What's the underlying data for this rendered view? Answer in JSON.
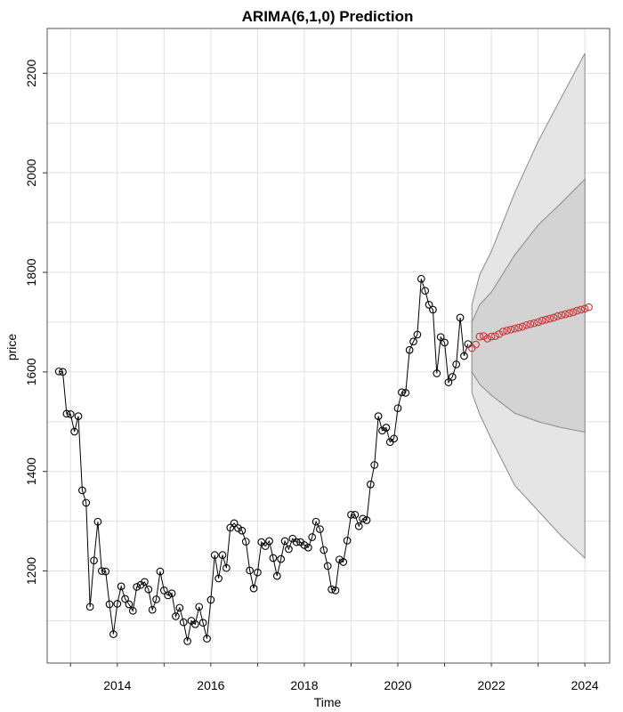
{
  "chart_data": {
    "type": "line",
    "title": "ARIMA(6,1,0) Prediction",
    "xlabel": "Time",
    "ylabel": "price",
    "xlim": [
      2012.75,
      2024.4
    ],
    "ylim": [
      1015,
      2290
    ],
    "grid": true,
    "x_ticks": [
      2014,
      2016,
      2018,
      2020,
      2022,
      2024
    ],
    "y_ticks": [
      1200,
      1400,
      1600,
      1800,
      2000,
      2200
    ],
    "series": [
      {
        "role": "observed",
        "color": "#000000",
        "start": 2012.75,
        "step": 0.0833333,
        "values": [
          1601,
          1600,
          1516,
          1515,
          1480,
          1511,
          1362,
          1337,
          1128,
          1221,
          1299,
          1200,
          1199,
          1133,
          1073,
          1134,
          1169,
          1144,
          1133,
          1120,
          1168,
          1172,
          1178,
          1163,
          1122,
          1143,
          1199,
          1161,
          1151,
          1155,
          1109,
          1126,
          1097,
          1059,
          1100,
          1093,
          1128,
          1096,
          1064,
          1142,
          1232,
          1185,
          1232,
          1206,
          1287,
          1296,
          1286,
          1281,
          1259,
          1201,
          1165,
          1197,
          1258,
          1250,
          1260,
          1226,
          1190,
          1224,
          1260,
          1244,
          1265,
          1258,
          1258,
          1252,
          1247,
          1268,
          1299,
          1284,
          1242,
          1210,
          1163,
          1161,
          1223,
          1218,
          1261,
          1313,
          1313,
          1290,
          1305,
          1302,
          1374,
          1413,
          1511,
          1482,
          1488,
          1459,
          1466,
          1527,
          1559,
          1558,
          1644,
          1661,
          1675,
          1787,
          1763,
          1735,
          1725,
          1597,
          1670,
          1659,
          1579,
          1590,
          1615,
          1709,
          1632,
          1656
        ]
      },
      {
        "role": "forecast",
        "color": "#cc3333",
        "start": 2021.5833,
        "step": 0.0833333,
        "values": [
          1648,
          1655,
          1671,
          1672,
          1667,
          1671,
          1672,
          1676,
          1681,
          1683,
          1685,
          1687,
          1689,
          1691,
          1694,
          1696,
          1698,
          1700,
          1703,
          1705,
          1707,
          1709,
          1712,
          1714,
          1716,
          1718,
          1720,
          1723,
          1725,
          1727,
          1730
        ]
      }
    ],
    "intervals": [
      {
        "level": "95%",
        "color": "#e5e5e5",
        "x": [
          2021.5833,
          2021.75,
          2022.0,
          2022.5,
          2023.0,
          2023.5,
          2024.0
        ],
        "upper": [
          1735,
          1795,
          1842,
          1960,
          2063,
          2152,
          2240
        ],
        "lower": [
          1558,
          1515,
          1465,
          1372,
          1321,
          1270,
          1226
        ]
      },
      {
        "level": "80%",
        "color": "#d3d3d3",
        "x": [
          2021.5833,
          2021.75,
          2022.0,
          2022.5,
          2023.0,
          2023.5,
          2024.0
        ],
        "upper": [
          1700,
          1735,
          1760,
          1835,
          1895,
          1940,
          1987
        ],
        "lower": [
          1600,
          1575,
          1553,
          1517,
          1500,
          1488,
          1479
        ]
      }
    ]
  }
}
